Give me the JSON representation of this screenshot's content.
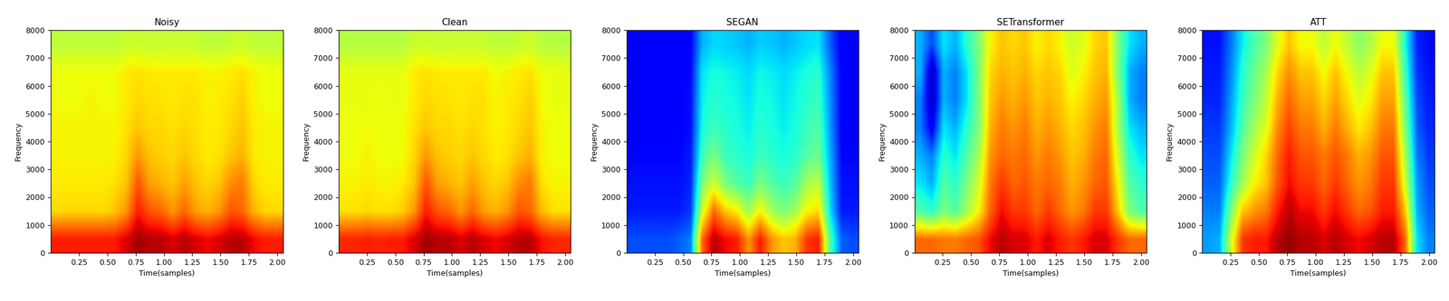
{
  "chart_data": [
    {
      "type": "heatmap",
      "title": "Noisy",
      "x_label": "Time(samples)",
      "y_label": "Frequency",
      "color": "jet",
      "xlim": [
        0,
        2.05
      ],
      "ylim": [
        0,
        8000
      ],
      "xticks": [
        0.25,
        {
          "value": 0.5,
          "label": "0.50"
        },
        0.75,
        {
          "value": 1.0,
          "label": "1.00"
        },
        1.25,
        {
          "value": 1.5,
          "label": "1.50"
        },
        1.75,
        {
          "value": 2.0,
          "label": "2.00"
        }
      ],
      "yticks": [
        0,
        1000,
        2000,
        3000,
        4000,
        5000,
        6000,
        7000,
        8000
      ],
      "color_range": [
        0,
        100
      ],
      "cells": [
        [
          88,
          88,
          88,
          88,
          88,
          88,
          92,
          97,
          95,
          95,
          92,
          95,
          92,
          90,
          92,
          95,
          95,
          90,
          88,
          88
        ],
        [
          68,
          68,
          68,
          68,
          68,
          70,
          75,
          88,
          82,
          80,
          75,
          80,
          74,
          72,
          75,
          82,
          80,
          72,
          68,
          68
        ],
        [
          66,
          66,
          66,
          66,
          66,
          67,
          70,
          82,
          74,
          72,
          70,
          74,
          70,
          68,
          70,
          76,
          78,
          68,
          66,
          66
        ],
        [
          65,
          65,
          65,
          65,
          65,
          65,
          68,
          75,
          70,
          69,
          68,
          70,
          68,
          66,
          67,
          70,
          72,
          66,
          65,
          65
        ],
        [
          65,
          65,
          65,
          65,
          65,
          65,
          67,
          70,
          68,
          68,
          67,
          68,
          67,
          66,
          66,
          68,
          70,
          66,
          65,
          65
        ],
        [
          64,
          64,
          64,
          65,
          64,
          64,
          66,
          68,
          67,
          67,
          66,
          67,
          67,
          65,
          66,
          67,
          69,
          65,
          64,
          64
        ],
        [
          64,
          64,
          64,
          64,
          64,
          64,
          66,
          67,
          66,
          66,
          66,
          66,
          66,
          65,
          65,
          66,
          67,
          65,
          64,
          64
        ],
        [
          58,
          58,
          58,
          58,
          58,
          58,
          59,
          60,
          59,
          59,
          59,
          59,
          59,
          58,
          58,
          59,
          60,
          58,
          58,
          58
        ]
      ]
    },
    {
      "type": "heatmap",
      "title": "Clean",
      "x_label": "Time(samples)",
      "y_label": "Frequency",
      "color": "jet",
      "xlim": [
        0,
        2.05
      ],
      "ylim": [
        0,
        8000
      ],
      "xticks": [
        0.25,
        {
          "value": 0.5,
          "label": "0.50"
        },
        0.75,
        {
          "value": 1.0,
          "label": "1.00"
        },
        1.25,
        {
          "value": 1.5,
          "label": "1.50"
        },
        1.75,
        {
          "value": 2.0,
          "label": "2.00"
        }
      ],
      "yticks": [
        0,
        1000,
        2000,
        3000,
        4000,
        5000,
        6000,
        7000,
        8000
      ],
      "color_range": [
        0,
        100
      ],
      "cells": [
        [
          87,
          87,
          88,
          87,
          88,
          88,
          92,
          97,
          95,
          95,
          92,
          95,
          92,
          90,
          92,
          95,
          95,
          89,
          87,
          87
        ],
        [
          67,
          67,
          68,
          67,
          67,
          69,
          75,
          88,
          82,
          80,
          75,
          80,
          74,
          72,
          75,
          82,
          80,
          71,
          67,
          67
        ],
        [
          65,
          65,
          66,
          65,
          65,
          66,
          70,
          82,
          74,
          72,
          70,
          74,
          70,
          68,
          70,
          76,
          78,
          67,
          65,
          65
        ],
        [
          64,
          64,
          65,
          64,
          64,
          64,
          68,
          75,
          70,
          69,
          68,
          70,
          68,
          66,
          67,
          70,
          72,
          65,
          64,
          64
        ],
        [
          64,
          64,
          64,
          64,
          64,
          64,
          67,
          70,
          68,
          68,
          67,
          68,
          67,
          65,
          66,
          68,
          70,
          65,
          64,
          64
        ],
        [
          63,
          63,
          63,
          64,
          63,
          63,
          66,
          68,
          67,
          67,
          66,
          67,
          67,
          65,
          66,
          67,
          69,
          64,
          63,
          63
        ],
        [
          63,
          63,
          63,
          63,
          63,
          63,
          66,
          67,
          66,
          66,
          66,
          66,
          66,
          64,
          65,
          66,
          67,
          64,
          63,
          63
        ],
        [
          57,
          57,
          57,
          57,
          57,
          57,
          59,
          60,
          59,
          59,
          59,
          59,
          59,
          58,
          58,
          59,
          60,
          57,
          57,
          57
        ]
      ]
    },
    {
      "type": "heatmap",
      "title": "SEGAN",
      "x_label": "Time(samples)",
      "y_label": "Frequency",
      "color": "jet",
      "xlim": [
        0,
        2.05
      ],
      "ylim": [
        0,
        8000
      ],
      "xticks": [
        0.25,
        {
          "value": 0.5,
          "label": "0.50"
        },
        0.75,
        {
          "value": 1.0,
          "label": "1.00"
        },
        1.25,
        {
          "value": 1.5,
          "label": "1.50"
        },
        1.75,
        {
          "value": 2.0,
          "label": "2.00"
        }
      ],
      "yticks": [
        0,
        1000,
        2000,
        3000,
        4000,
        5000,
        6000,
        7000,
        8000
      ],
      "color_range": [
        0,
        100
      ],
      "cells": [
        [
          20,
          20,
          20,
          20,
          22,
          25,
          80,
          95,
          90,
          88,
          75,
          88,
          75,
          70,
          72,
          85,
          88,
          45,
          22,
          20
        ],
        [
          15,
          15,
          15,
          15,
          15,
          18,
          60,
          80,
          70,
          65,
          55,
          65,
          55,
          50,
          55,
          65,
          68,
          35,
          15,
          15
        ],
        [
          14,
          14,
          14,
          14,
          14,
          16,
          50,
          60,
          50,
          45,
          42,
          50,
          45,
          42,
          45,
          55,
          58,
          32,
          14,
          14
        ],
        [
          13,
          13,
          13,
          13,
          13,
          15,
          42,
          50,
          42,
          40,
          38,
          42,
          40,
          38,
          40,
          45,
          48,
          30,
          13,
          13
        ],
        [
          12,
          12,
          12,
          12,
          12,
          14,
          38,
          42,
          40,
          38,
          36,
          40,
          38,
          36,
          38,
          42,
          45,
          28,
          12,
          12
        ],
        [
          12,
          12,
          12,
          12,
          12,
          14,
          36,
          40,
          38,
          37,
          35,
          38,
          37,
          35,
          37,
          40,
          42,
          27,
          12,
          12
        ],
        [
          12,
          12,
          12,
          12,
          12,
          13,
          35,
          38,
          37,
          36,
          34,
          37,
          36,
          34,
          36,
          38,
          40,
          26,
          12,
          12
        ],
        [
          11,
          11,
          11,
          11,
          11,
          12,
          30,
          34,
          33,
          32,
          30,
          33,
          32,
          30,
          32,
          34,
          35,
          22,
          11,
          11
        ]
      ]
    },
    {
      "type": "heatmap",
      "title": "SETransformer",
      "x_label": "Time(samples)",
      "y_label": "Frequency",
      "color": "jet",
      "xlim": [
        0,
        2.05
      ],
      "ylim": [
        0,
        8000
      ],
      "xticks": [
        0.25,
        {
          "value": 0.5,
          "label": "0.50"
        },
        0.75,
        {
          "value": 1.0,
          "label": "1.00"
        },
        1.25,
        {
          "value": 1.5,
          "label": "1.50"
        },
        1.75,
        {
          "value": 2.0,
          "label": "2.00"
        }
      ],
      "yticks": [
        0,
        1000,
        2000,
        3000,
        4000,
        5000,
        6000,
        7000,
        8000
      ],
      "color_range": [
        0,
        100
      ],
      "cells": [
        [
          80,
          80,
          78,
          78,
          80,
          82,
          90,
          95,
          92,
          92,
          88,
          92,
          88,
          85,
          88,
          92,
          92,
          85,
          80,
          80
        ],
        [
          45,
          40,
          50,
          45,
          55,
          65,
          80,
          90,
          85,
          85,
          80,
          85,
          80,
          75,
          78,
          85,
          85,
          70,
          50,
          45
        ],
        [
          35,
          30,
          45,
          40,
          50,
          60,
          78,
          85,
          80,
          82,
          78,
          80,
          78,
          72,
          75,
          80,
          82,
          65,
          45,
          40
        ],
        [
          30,
          25,
          40,
          35,
          45,
          55,
          75,
          80,
          78,
          80,
          75,
          78,
          75,
          70,
          72,
          78,
          80,
          60,
          40,
          35
        ],
        [
          25,
          10,
          35,
          30,
          40,
          50,
          72,
          78,
          75,
          78,
          72,
          75,
          72,
          68,
          70,
          75,
          78,
          55,
          35,
          30
        ],
        [
          25,
          5,
          30,
          25,
          35,
          50,
          70,
          75,
          72,
          75,
          70,
          72,
          70,
          65,
          68,
          72,
          75,
          55,
          30,
          25
        ],
        [
          30,
          5,
          30,
          25,
          35,
          50,
          68,
          72,
          70,
          72,
          68,
          70,
          68,
          62,
          65,
          70,
          72,
          50,
          30,
          25
        ],
        [
          30,
          20,
          35,
          30,
          40,
          50,
          65,
          70,
          68,
          70,
          65,
          68,
          65,
          60,
          62,
          68,
          70,
          50,
          35,
          30
        ]
      ]
    },
    {
      "type": "heatmap",
      "title": "ATT",
      "x_label": "Time(samples)",
      "y_label": "Frequency",
      "color": "jet",
      "xlim": [
        0,
        2.05
      ],
      "ylim": [
        0,
        8000
      ],
      "xticks": [
        0.25,
        {
          "value": 0.5,
          "label": "0.50"
        },
        0.75,
        {
          "value": 1.0,
          "label": "1.00"
        },
        1.25,
        {
          "value": 1.5,
          "label": "1.50"
        },
        1.75,
        {
          "value": 2.0,
          "label": "2.00"
        }
      ],
      "yticks": [
        0,
        1000,
        2000,
        3000,
        4000,
        5000,
        6000,
        7000,
        8000
      ],
      "color_range": [
        0,
        100
      ],
      "cells": [
        [
          28,
          30,
          60,
          85,
          88,
          88,
          95,
          98,
          95,
          95,
          92,
          95,
          92,
          90,
          92,
          95,
          95,
          80,
          35,
          25
        ],
        [
          25,
          25,
          50,
          70,
          75,
          78,
          88,
          95,
          90,
          90,
          85,
          90,
          85,
          80,
          82,
          88,
          88,
          70,
          30,
          22
        ],
        [
          22,
          22,
          40,
          55,
          65,
          70,
          82,
          90,
          85,
          85,
          80,
          85,
          80,
          75,
          78,
          85,
          85,
          60,
          28,
          20
        ],
        [
          20,
          20,
          35,
          50,
          60,
          68,
          80,
          88,
          82,
          82,
          78,
          82,
          78,
          72,
          75,
          82,
          82,
          55,
          25,
          18
        ],
        [
          18,
          18,
          30,
          45,
          55,
          62,
          76,
          84,
          78,
          78,
          72,
          78,
          72,
          66,
          70,
          78,
          78,
          50,
          22,
          16
        ],
        [
          16,
          16,
          28,
          42,
          50,
          58,
          72,
          80,
          74,
          74,
          68,
          74,
          68,
          62,
          66,
          74,
          74,
          46,
          20,
          15
        ],
        [
          15,
          15,
          26,
          40,
          48,
          55,
          68,
          76,
          70,
          70,
          64,
          70,
          64,
          58,
          62,
          70,
          70,
          42,
          18,
          14
        ],
        [
          14,
          14,
          24,
          36,
          44,
          50,
          62,
          70,
          64,
          64,
          58,
          64,
          58,
          52,
          56,
          64,
          64,
          38,
          16,
          13
        ]
      ]
    }
  ]
}
